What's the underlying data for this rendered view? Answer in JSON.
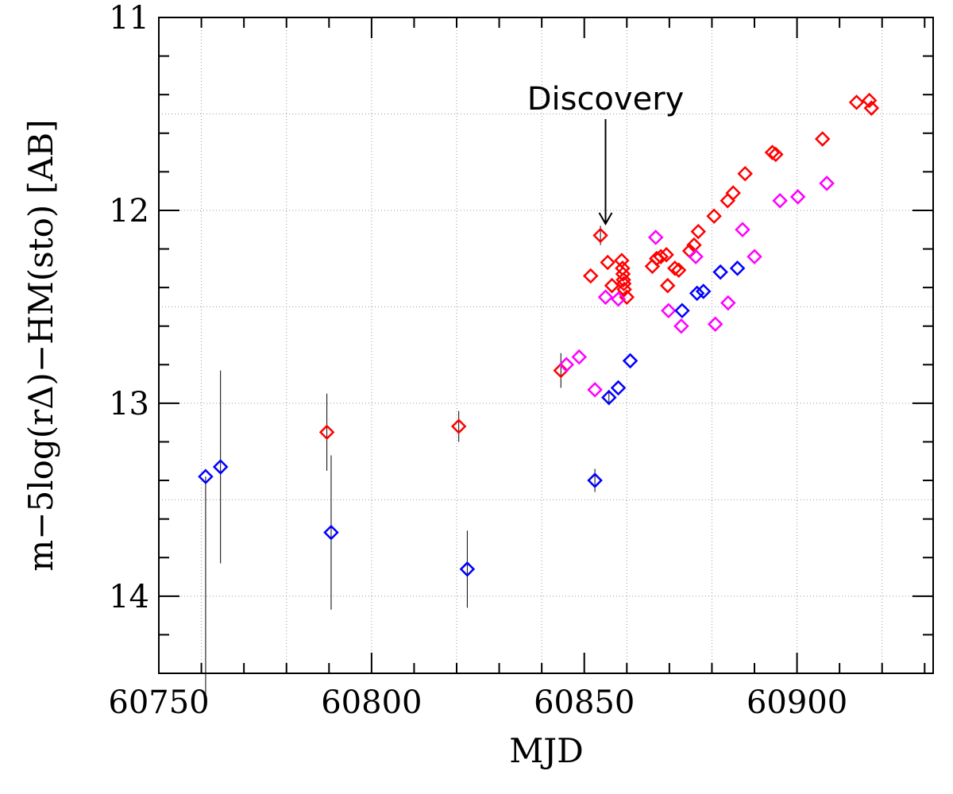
{
  "chart_data": {
    "type": "scatter",
    "title": "",
    "xlabel": "MJD",
    "ylabel": "m−5log(rΔ)−HM(sto) [AB]",
    "xlim": [
      60750,
      60932
    ],
    "ylim": [
      14.4,
      11.0
    ],
    "y_inverted": true,
    "x_ticks": [
      60750,
      60800,
      60850,
      60900
    ],
    "x_tick_labels": [
      "60750",
      "60800",
      "60850",
      "60900"
    ],
    "y_ticks": [
      11,
      12,
      13,
      14
    ],
    "y_tick_labels": [
      "11",
      "12",
      "13",
      "14"
    ],
    "grid": true,
    "annotation": {
      "text": "Discovery",
      "x": 60855,
      "y_text": 11.42,
      "y_arrow_tip": 12.07
    },
    "series": [
      {
        "name": "red",
        "color": "#ff0000",
        "points": [
          {
            "x": 60844.5,
            "y": 12.83,
            "err": 0.09
          },
          {
            "x": 60789.5,
            "y": 13.15,
            "err": 0.2
          },
          {
            "x": 60820.5,
            "y": 13.12,
            "err": 0.08
          },
          {
            "x": 60851.5,
            "y": 12.34
          },
          {
            "x": 60853.8,
            "y": 12.13,
            "err": 0.05
          },
          {
            "x": 60855.5,
            "y": 12.27
          },
          {
            "x": 60856.5,
            "y": 12.39
          },
          {
            "x": 60858.8,
            "y": 12.26
          },
          {
            "x": 60859.0,
            "y": 12.3
          },
          {
            "x": 60859.1,
            "y": 12.33
          },
          {
            "x": 60859.2,
            "y": 12.36
          },
          {
            "x": 60859.3,
            "y": 12.38
          },
          {
            "x": 60859.4,
            "y": 12.41
          },
          {
            "x": 60860.0,
            "y": 12.45
          },
          {
            "x": 60866.0,
            "y": 12.29
          },
          {
            "x": 60867.0,
            "y": 12.25
          },
          {
            "x": 60868.0,
            "y": 12.24
          },
          {
            "x": 60869.3,
            "y": 12.23
          },
          {
            "x": 60869.6,
            "y": 12.39
          },
          {
            "x": 60871.3,
            "y": 12.3
          },
          {
            "x": 60872.2,
            "y": 12.31
          },
          {
            "x": 60874.8,
            "y": 12.21
          },
          {
            "x": 60875.8,
            "y": 12.18
          },
          {
            "x": 60876.8,
            "y": 12.11
          },
          {
            "x": 60880.5,
            "y": 12.03
          },
          {
            "x": 60883.7,
            "y": 11.95
          },
          {
            "x": 60885.0,
            "y": 11.91
          },
          {
            "x": 60887.8,
            "y": 11.81
          },
          {
            "x": 60894.2,
            "y": 11.7
          },
          {
            "x": 60895.0,
            "y": 11.71
          },
          {
            "x": 60906.0,
            "y": 11.63
          },
          {
            "x": 60914.0,
            "y": 11.44
          },
          {
            "x": 60917.0,
            "y": 11.43
          },
          {
            "x": 60917.5,
            "y": 11.47
          }
        ]
      },
      {
        "name": "magenta",
        "color": "#ff00ff",
        "points": [
          {
            "x": 60845.8,
            "y": 12.8
          },
          {
            "x": 60848.8,
            "y": 12.76
          },
          {
            "x": 60852.5,
            "y": 12.93
          },
          {
            "x": 60855.0,
            "y": 12.45
          },
          {
            "x": 60858.0,
            "y": 12.46
          },
          {
            "x": 60866.8,
            "y": 12.14
          },
          {
            "x": 60869.8,
            "y": 12.52
          },
          {
            "x": 60872.8,
            "y": 12.6
          },
          {
            "x": 60876.2,
            "y": 12.24
          },
          {
            "x": 60880.8,
            "y": 12.59
          },
          {
            "x": 60883.8,
            "y": 12.48
          },
          {
            "x": 60887.2,
            "y": 12.1
          },
          {
            "x": 60890.0,
            "y": 12.24
          },
          {
            "x": 60896.0,
            "y": 11.95
          },
          {
            "x": 60900.2,
            "y": 11.93
          },
          {
            "x": 60907.0,
            "y": 11.86
          }
        ]
      },
      {
        "name": "blue",
        "color": "#0000ff",
        "points": [
          {
            "x": 60764.5,
            "y": 13.33,
            "err": 0.5
          },
          {
            "x": 60761.0,
            "y": 13.38,
            "err_low": 1.15,
            "err_high": 0
          },
          {
            "x": 60790.5,
            "y": 13.67,
            "err": 0.4
          },
          {
            "x": 60822.5,
            "y": 13.86,
            "err": 0.2
          },
          {
            "x": 60852.5,
            "y": 13.4,
            "err": 0.06
          },
          {
            "x": 60855.8,
            "y": 12.97,
            "err": 0.04
          },
          {
            "x": 60858.0,
            "y": 12.92
          },
          {
            "x": 60860.8,
            "y": 12.78
          },
          {
            "x": 60873.0,
            "y": 12.52
          },
          {
            "x": 60876.5,
            "y": 12.43
          },
          {
            "x": 60878.0,
            "y": 12.42
          },
          {
            "x": 60882.0,
            "y": 12.32
          },
          {
            "x": 60886.0,
            "y": 12.3
          }
        ]
      }
    ]
  }
}
